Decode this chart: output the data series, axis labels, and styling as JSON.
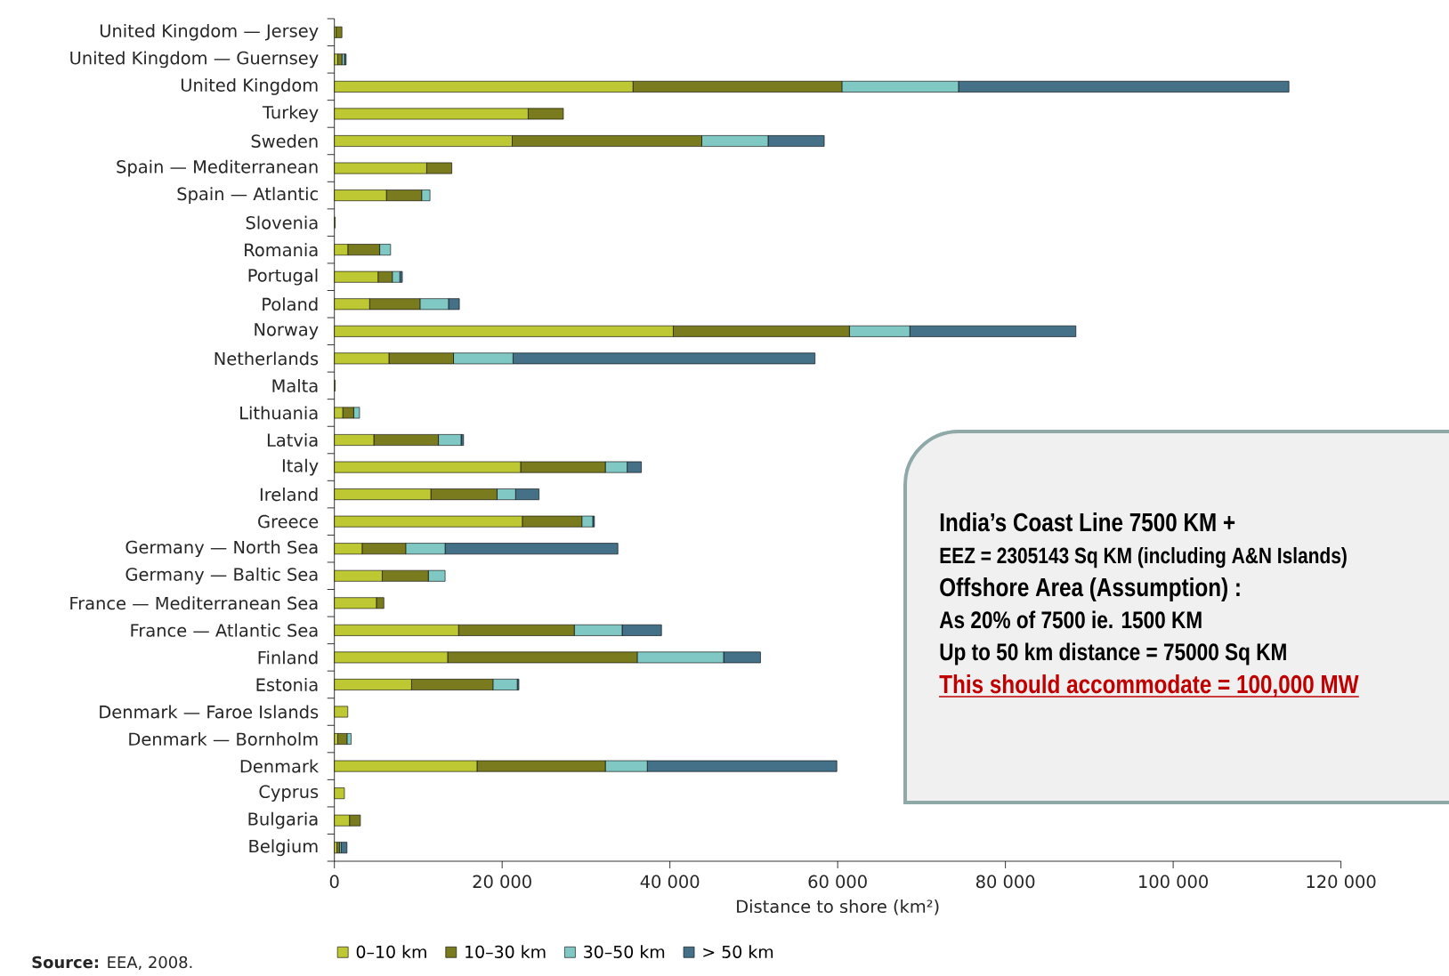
{
  "chart_data": {
    "type": "bar",
    "orientation": "horizontal",
    "stacked": true,
    "categories": [
      "United Kingdom — Jersey",
      "United Kingdom — Guernsey",
      "United Kingdom",
      "Turkey",
      "Sweden",
      "Spain — Mediterranean",
      "Spain — Atlantic",
      "Slovenia",
      "Romania",
      "Portugal",
      "Poland",
      "Norway",
      "Netherlands",
      "Malta",
      "Lithuania",
      "Latvia",
      "Italy",
      "Ireland",
      "Greece",
      "Germany — North Sea",
      "Germany — Baltic Sea",
      "France — Mediterranean Sea",
      "France — Atlantic Sea",
      "Finland",
      "Estonia",
      "Denmark — Faroe Islands",
      "Denmark — Bornholm",
      "Denmark",
      "Cyprus",
      "Bulgaria",
      "Belgium"
    ],
    "series": [
      {
        "name": "0–10 km",
        "color": "#bec832",
        "values": [
          200,
          400,
          35600,
          23100,
          21200,
          11000,
          6200,
          100,
          1600,
          5200,
          4200,
          40400,
          6500,
          100,
          1000,
          4700,
          22200,
          11500,
          22400,
          3300,
          5700,
          5000,
          14800,
          13500,
          9200,
          1600,
          400,
          17000,
          1200,
          1800,
          300
        ]
      },
      {
        "name": "10–30 km",
        "color": "#7a7a1e",
        "values": [
          700,
          500,
          24900,
          4200,
          22600,
          3000,
          4200,
          0,
          3800,
          1700,
          6000,
          21000,
          7700,
          0,
          1300,
          7700,
          10100,
          7900,
          7100,
          5200,
          5500,
          900,
          13800,
          22600,
          9700,
          0,
          1100,
          15300,
          0,
          1300,
          300
        ]
      },
      {
        "name": "30–50 km",
        "color": "#80c8c4",
        "values": [
          0,
          300,
          13900,
          0,
          7900,
          0,
          1000,
          0,
          1300,
          900,
          3400,
          7200,
          7100,
          0,
          700,
          2700,
          2600,
          2200,
          1300,
          4700,
          2000,
          0,
          5700,
          10300,
          2900,
          0,
          500,
          5000,
          0,
          0,
          200
        ]
      },
      {
        "name": "> 50 km",
        "color": "#447088",
        "values": [
          0,
          200,
          39400,
          0,
          6700,
          0,
          0,
          0,
          0,
          300,
          1300,
          19800,
          36000,
          0,
          0,
          300,
          1700,
          2800,
          200,
          20600,
          0,
          0,
          4700,
          4400,
          200,
          0,
          0,
          22600,
          0,
          0,
          700
        ]
      }
    ],
    "xlim": [
      0,
      120000
    ],
    "xticks": [
      0,
      {
        "value": 20000,
        "label": "20 000"
      },
      {
        "value": 40000,
        "label": "40 000"
      },
      {
        "value": 60000,
        "label": "60 000"
      },
      {
        "value": 80000,
        "label": "80 000"
      },
      {
        "value": 100000,
        "label": "100 000"
      },
      {
        "value": 120000,
        "label": "120 000"
      }
    ],
    "xlabel": "Distance to shore (km²)",
    "legend": "bottom",
    "annotations": [
      "India’s Coast Line 7500 KM +",
      "EEZ = 2305143 Sq KM (including A&N Islands)",
      "Offshore Area (Assumption) :",
      "As 20% of 7500 ie. 1500 KM",
      "Up to 50 km distance = 75000 Sq KM",
      "This should accommodate = 100,000 MW",
      "**Source:** EEA, 2008."
    ]
  }
}
